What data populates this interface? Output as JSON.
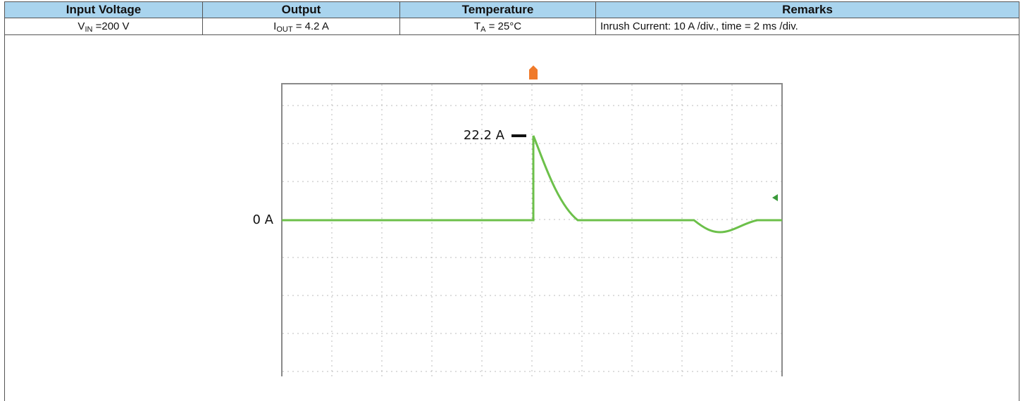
{
  "table": {
    "header": [
      "Input Voltage",
      "Output",
      "Temperature",
      "Remarks"
    ],
    "row": [
      {
        "main": "V",
        "sub": "IN",
        "rest": " =200 V"
      },
      {
        "main": "I",
        "sub": "OUT",
        "rest": " = 4.2 A"
      },
      {
        "main": "T",
        "sub": "A",
        "rest": " = 25°C"
      },
      "Inrush Current: 10 A /div., time = 2 ms /div."
    ]
  },
  "scope": {
    "annotations": [
      "22.2 A",
      "0 A"
    ]
  }
}
